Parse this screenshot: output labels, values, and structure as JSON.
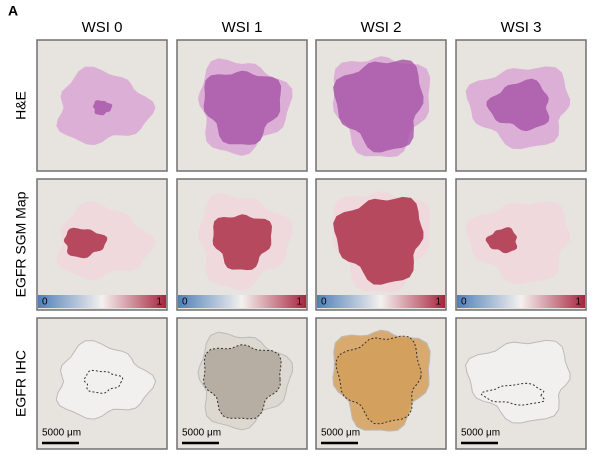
{
  "panel_label": "A",
  "columns": [
    "WSI 0",
    "WSI 1",
    "WSI 2",
    "WSI 3"
  ],
  "rows": [
    "H&E",
    "EGFR SGM Map",
    "EGFR IHC"
  ],
  "colorbars": [
    {
      "min": "0",
      "max": "1"
    },
    {
      "min": "0",
      "max": "1"
    },
    {
      "min": "0",
      "max": "1"
    },
    {
      "min": "0",
      "max": "1"
    }
  ],
  "scale_bars": [
    "5000 μm",
    "5000 μm",
    "5000 μm",
    "5000 μm"
  ]
}
